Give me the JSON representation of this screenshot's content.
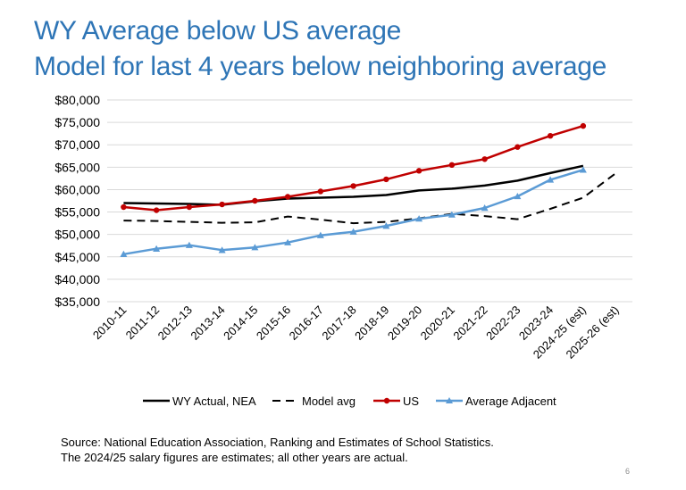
{
  "slide": {
    "title_line_1": "WY Average below US average",
    "title_line_2": "Model for last 4 years below neighboring average",
    "source_line_1": "Source: National Education Association, Ranking and  Estimates of School Statistics.",
    "source_line_2": "The 2024/25 salary figures are estimates; all other years are actual.",
    "page_number": "6",
    "title_color": "#2E75B6"
  },
  "chart_data": {
    "type": "line",
    "title": "",
    "xlabel": "",
    "ylabel": "",
    "categories": [
      "2010-11",
      "2011-12",
      "2012-13",
      "2013-14",
      "2014-15",
      "2015-16",
      "2016-17",
      "2017-18",
      "2018-19",
      "2019-20",
      "2020-21",
      "2021-22",
      "2022-23",
      "2023-24",
      "2024-25 (est)",
      "2025-26 (est)"
    ],
    "ylim": [
      35000,
      80000
    ],
    "yticks": [
      35000,
      40000,
      45000,
      50000,
      55000,
      60000,
      65000,
      70000,
      75000,
      80000
    ],
    "ytick_labels": [
      "$35,000",
      "$40,000",
      "$45,000",
      "$50,000",
      "$55,000",
      "$60,000",
      "$65,000",
      "$70,000",
      "$75,000",
      "$80,000"
    ],
    "grid": true,
    "legend_position": "bottom",
    "series": [
      {
        "name": "WY Actual, NEA",
        "color": "#000000",
        "style": "solid",
        "marker": "none",
        "values": [
          57000,
          56900,
          56800,
          56600,
          57400,
          58000,
          58200,
          58400,
          58800,
          59800,
          60200,
          60900,
          62000,
          63700,
          65300,
          null
        ]
      },
      {
        "name": "Model avg",
        "color": "#000000",
        "style": "dashed",
        "marker": "none",
        "values": [
          53100,
          53000,
          52800,
          52600,
          52700,
          54000,
          53300,
          52500,
          52800,
          53600,
          54600,
          54100,
          53400,
          55700,
          58200,
          63700
        ]
      },
      {
        "name": "US",
        "color": "#C00000",
        "style": "solid",
        "marker": "circle",
        "values": [
          56100,
          55400,
          56100,
          56700,
          57500,
          58400,
          59600,
          60800,
          62300,
          64200,
          65500,
          66800,
          69500,
          72000,
          74200,
          null
        ]
      },
      {
        "name": "Average Adjacent",
        "color": "#5B9BD5",
        "style": "solid",
        "marker": "triangle",
        "values": [
          45600,
          46800,
          47600,
          46500,
          47100,
          48200,
          49800,
          50600,
          51900,
          53500,
          54400,
          55900,
          58500,
          62200,
          64400,
          null
        ]
      }
    ]
  }
}
